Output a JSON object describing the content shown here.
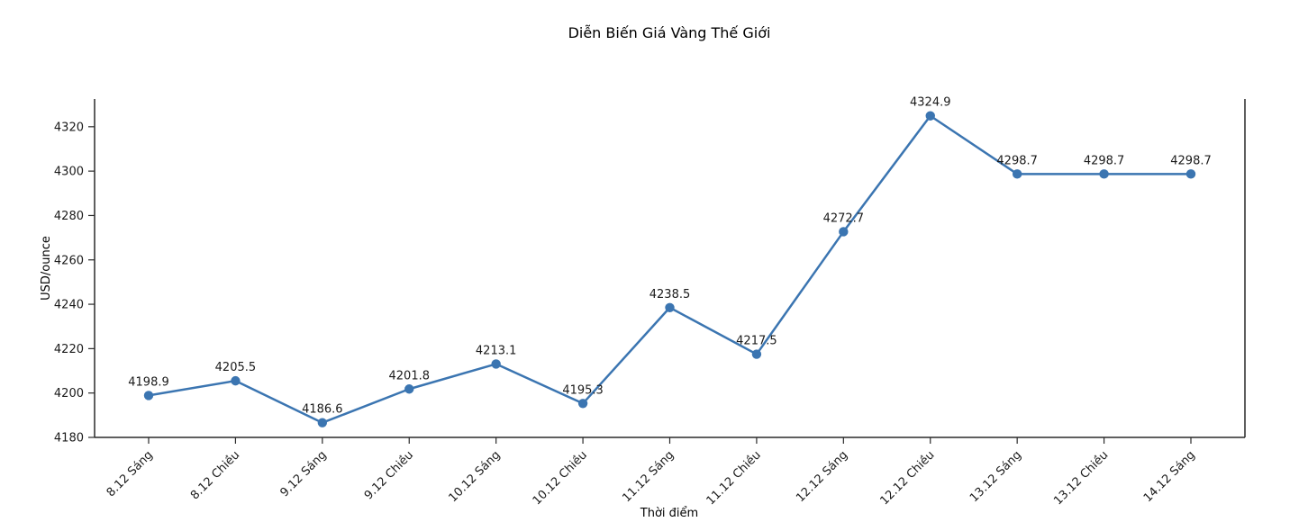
{
  "figure": {
    "background": "#ffffff"
  },
  "chart_data": {
    "type": "line",
    "title": "Diễn Biến Giá Vàng Thế Giới",
    "xlabel": "Thời điểm",
    "ylabel": "USD/ounce",
    "categories": [
      "8.12 Sáng",
      "8.12 Chiều",
      "9.12 Sáng",
      "9.12 Chiều",
      "10.12 Sáng",
      "10.12 Chiều",
      "11.12 Sáng",
      "11.12 Chiều",
      "12.12 Sáng",
      "12.12 Chiều",
      "13.12 Sáng",
      "13.12 Chiều",
      "14.12 Sáng"
    ],
    "values": [
      4198.9,
      4205.5,
      4186.6,
      4201.8,
      4213.1,
      4195.3,
      4238.5,
      4217.5,
      4272.7,
      4324.9,
      4298.7,
      4298.7,
      4298.7
    ],
    "point_labels": [
      "4198.9",
      "4205.5",
      "4186.6",
      "4201.8",
      "4213.1",
      "4195.3",
      "4238.5",
      "4217.5",
      "4272.7",
      "4324.9",
      "4298.7",
      "4298.7",
      "4298.7"
    ],
    "yticks": [
      4180,
      4200,
      4220,
      4240,
      4260,
      4280,
      4300,
      4320
    ],
    "ylim": [
      4180,
      4332.5
    ],
    "x_tick_rotation": 45,
    "grid": false,
    "legend": false,
    "marker": "circle",
    "line_color": "#3b75b1",
    "marker_color": "#3b75b1",
    "text_color": "#1a1a1a",
    "axis_color": "#2a2a2a"
  }
}
